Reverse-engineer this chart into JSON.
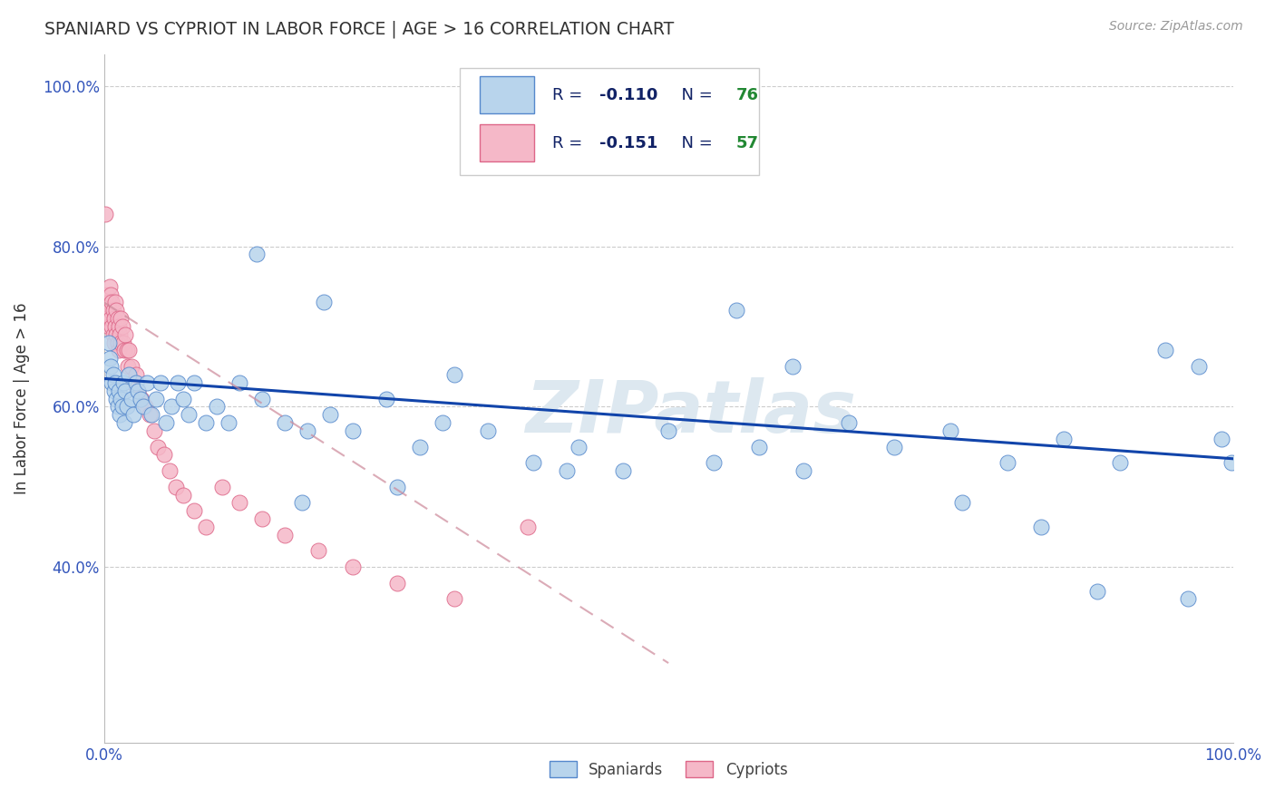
{
  "title": "SPANIARD VS CYPRIOT IN LABOR FORCE | AGE > 16 CORRELATION CHART",
  "source_text": "Source: ZipAtlas.com",
  "ylabel": "In Labor Force | Age > 16",
  "xlim": [
    0.0,
    1.0
  ],
  "ylim": [
    0.18,
    1.04
  ],
  "xticks": [
    0.0,
    0.25,
    0.5,
    0.75,
    1.0
  ],
  "xticklabels": [
    "0.0%",
    "",
    "",
    "",
    "100.0%"
  ],
  "yticks": [
    0.2,
    0.4,
    0.6,
    0.8,
    1.0
  ],
  "yticklabels": [
    "",
    "40.0%",
    "60.0%",
    "80.0%",
    "100.0%"
  ],
  "blue_R": -0.11,
  "blue_N": 76,
  "pink_R": -0.151,
  "pink_N": 57,
  "blue_fill": "#b8d4ec",
  "blue_edge": "#5588cc",
  "pink_fill": "#f5b8c8",
  "pink_edge": "#dd6688",
  "blue_line": "#1144aa",
  "pink_line": "#cc8899",
  "background_color": "#ffffff",
  "grid_color": "#cccccc",
  "watermark": "ZIPatlas",
  "watermark_color": "#dde8f0",
  "tick_color": "#3355bb",
  "legend_R_color": "#112266",
  "legend_N_color": "#228833",
  "spaniards_x": [
    0.004,
    0.005,
    0.006,
    0.007,
    0.008,
    0.009,
    0.01,
    0.011,
    0.012,
    0.013,
    0.014,
    0.015,
    0.016,
    0.017,
    0.018,
    0.019,
    0.02,
    0.022,
    0.024,
    0.026,
    0.028,
    0.03,
    0.032,
    0.035,
    0.038,
    0.042,
    0.046,
    0.05,
    0.055,
    0.06,
    0.065,
    0.07,
    0.075,
    0.08,
    0.09,
    0.1,
    0.11,
    0.12,
    0.14,
    0.16,
    0.18,
    0.2,
    0.22,
    0.25,
    0.28,
    0.3,
    0.34,
    0.38,
    0.42,
    0.46,
    0.5,
    0.54,
    0.58,
    0.62,
    0.66,
    0.7,
    0.75,
    0.8,
    0.85,
    0.9,
    0.94,
    0.97,
    0.99,
    0.999,
    0.135,
    0.195,
    0.31,
    0.41,
    0.56,
    0.61,
    0.76,
    0.83,
    0.88,
    0.96,
    0.175,
    0.26
  ],
  "spaniards_y": [
    0.68,
    0.66,
    0.65,
    0.63,
    0.64,
    0.62,
    0.63,
    0.61,
    0.6,
    0.62,
    0.59,
    0.61,
    0.6,
    0.63,
    0.58,
    0.62,
    0.6,
    0.64,
    0.61,
    0.59,
    0.63,
    0.62,
    0.61,
    0.6,
    0.63,
    0.59,
    0.61,
    0.63,
    0.58,
    0.6,
    0.63,
    0.61,
    0.59,
    0.63,
    0.58,
    0.6,
    0.58,
    0.63,
    0.61,
    0.58,
    0.57,
    0.59,
    0.57,
    0.61,
    0.55,
    0.58,
    0.57,
    0.53,
    0.55,
    0.52,
    0.57,
    0.53,
    0.55,
    0.52,
    0.58,
    0.55,
    0.57,
    0.53,
    0.56,
    0.53,
    0.67,
    0.65,
    0.56,
    0.53,
    0.79,
    0.73,
    0.64,
    0.52,
    0.72,
    0.65,
    0.48,
    0.45,
    0.37,
    0.36,
    0.48,
    0.5
  ],
  "cypriots_x": [
    0.002,
    0.003,
    0.003,
    0.004,
    0.004,
    0.005,
    0.005,
    0.006,
    0.006,
    0.007,
    0.007,
    0.008,
    0.008,
    0.009,
    0.009,
    0.01,
    0.01,
    0.011,
    0.011,
    0.012,
    0.012,
    0.013,
    0.013,
    0.014,
    0.015,
    0.015,
    0.016,
    0.017,
    0.018,
    0.019,
    0.02,
    0.021,
    0.022,
    0.024,
    0.026,
    0.028,
    0.03,
    0.033,
    0.036,
    0.04,
    0.044,
    0.048,
    0.053,
    0.058,
    0.064,
    0.07,
    0.08,
    0.09,
    0.105,
    0.12,
    0.14,
    0.16,
    0.19,
    0.22,
    0.26,
    0.31,
    0.375
  ],
  "cypriots_y": [
    0.72,
    0.74,
    0.71,
    0.73,
    0.7,
    0.75,
    0.72,
    0.74,
    0.71,
    0.73,
    0.7,
    0.72,
    0.69,
    0.71,
    0.68,
    0.73,
    0.7,
    0.72,
    0.69,
    0.71,
    0.68,
    0.7,
    0.67,
    0.69,
    0.71,
    0.68,
    0.7,
    0.68,
    0.67,
    0.69,
    0.67,
    0.65,
    0.67,
    0.65,
    0.63,
    0.64,
    0.62,
    0.61,
    0.6,
    0.59,
    0.57,
    0.55,
    0.54,
    0.52,
    0.5,
    0.49,
    0.47,
    0.45,
    0.5,
    0.48,
    0.46,
    0.44,
    0.42,
    0.4,
    0.38,
    0.36,
    0.45
  ],
  "cypriot_outlier_x": [
    0.001
  ],
  "cypriot_outlier_y": [
    0.84
  ],
  "blue_line_x0": 0.0,
  "blue_line_y0": 0.635,
  "blue_line_x1": 1.0,
  "blue_line_y1": 0.535,
  "pink_line_x0": 0.0,
  "pink_line_y0": 0.73,
  "pink_line_x1": 0.5,
  "pink_line_y1": 0.28
}
